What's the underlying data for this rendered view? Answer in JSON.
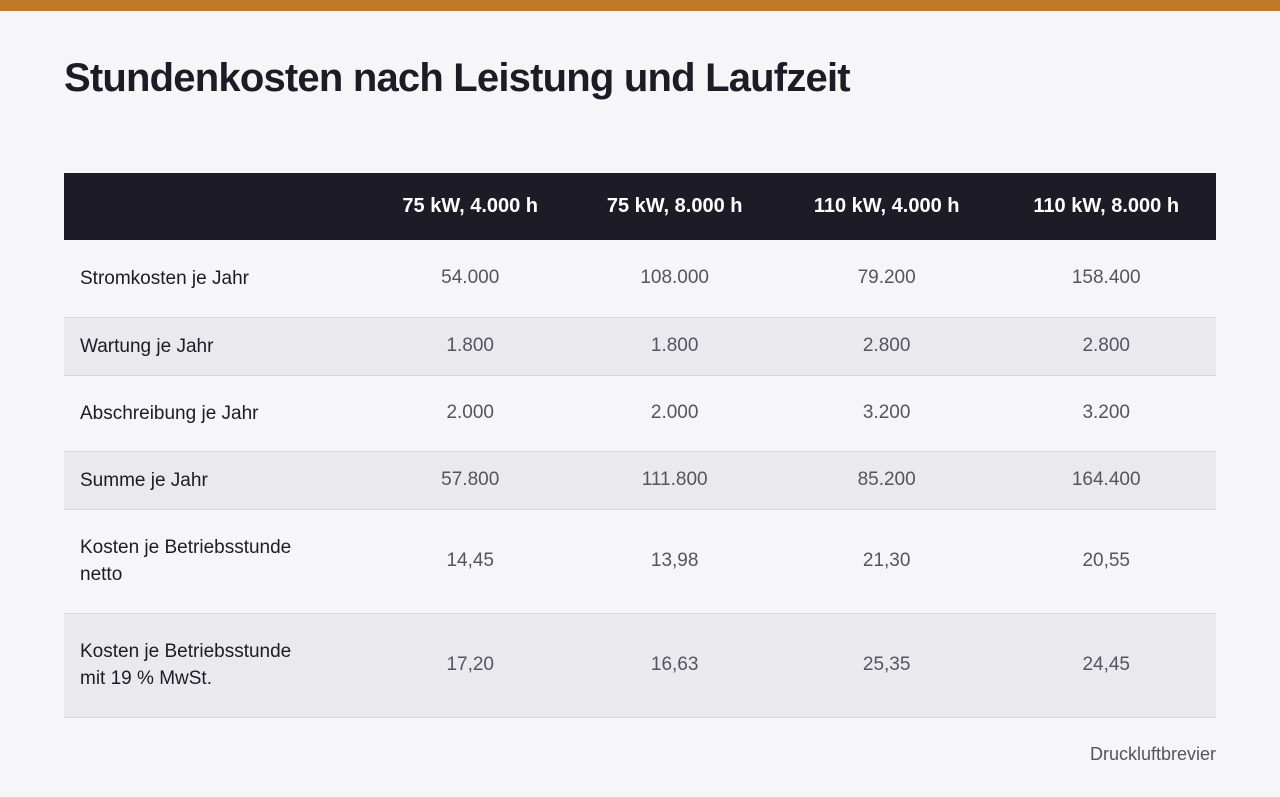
{
  "title": "Stundenkosten nach Leistung und Laufzeit",
  "columns": [
    "",
    "75 kW, 4.000 h",
    "75 kW, 8.000 h",
    "110 kW, 4.000 h",
    "110 kW, 8.000 h"
  ],
  "rows": [
    {
      "label": "Stromkosten je Jahr",
      "values": [
        "54.000",
        "108.000",
        "79.200",
        "158.400"
      ]
    },
    {
      "label": "Wartung je Jahr",
      "values": [
        "1.800",
        "1.800",
        "2.800",
        "2.800"
      ]
    },
    {
      "label": "Abschreibung je Jahr",
      "values": [
        "2.000",
        "2.000",
        "3.200",
        "3.200"
      ]
    },
    {
      "label": "Summe je Jahr",
      "values": [
        "57.800",
        "111.800",
        "85.200",
        "164.400"
      ]
    },
    {
      "label": "Kosten je Betriebsstunde netto",
      "values": [
        "14,45",
        "13,98",
        "21,30",
        "20,55"
      ]
    },
    {
      "label": "Kosten je Betriebsstunde mit 19 % MwSt.",
      "values": [
        "17,20",
        "16,63",
        "25,35",
        "24,45"
      ]
    }
  ],
  "source": "Druckluftbrevier",
  "colors": {
    "accent": "#c07a28",
    "header_bg": "#1c1b26"
  }
}
